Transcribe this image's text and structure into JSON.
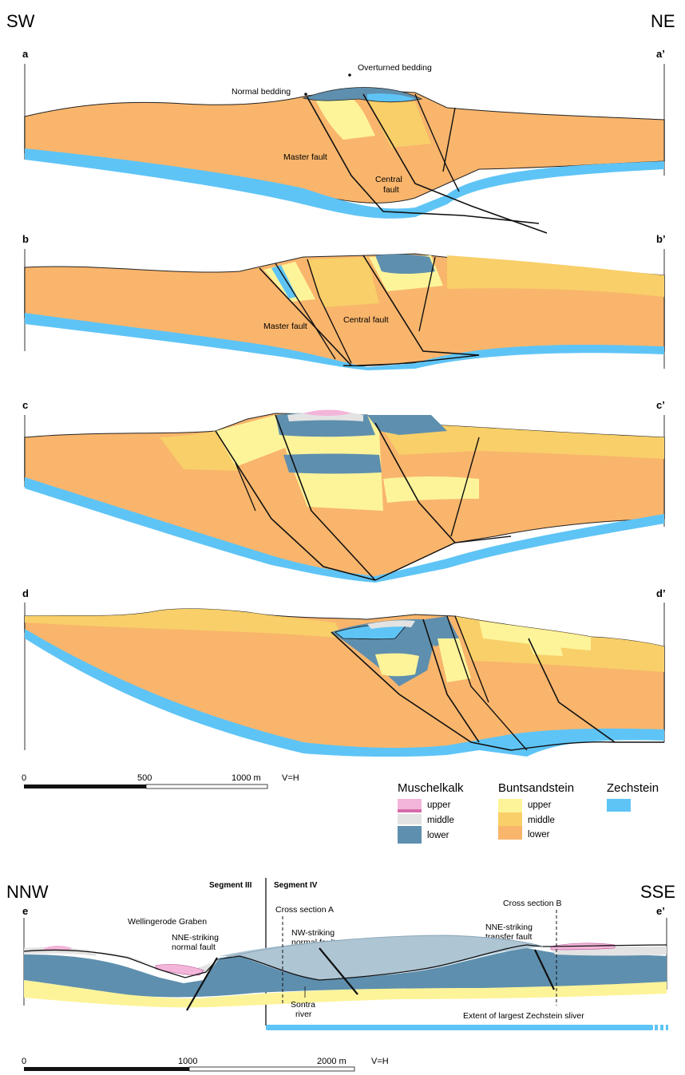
{
  "upper_diagram": {
    "corner_left": "SW",
    "corner_right": "NE",
    "sections": [
      {
        "id": "a",
        "left": "a",
        "right": "a’"
      },
      {
        "id": "b",
        "left": "b",
        "right": "b’"
      },
      {
        "id": "c",
        "left": "c",
        "right": "c’"
      },
      {
        "id": "d",
        "left": "d",
        "right": "d’"
      }
    ],
    "annotations": {
      "normal_bedding": "Normal bedding",
      "overturned_bedding": "Overturned bedding",
      "master_fault_a": "Master fault",
      "central_fault_a_line1": "Central",
      "central_fault_a_line2": "fault",
      "master_fault_b": "Master fault",
      "central_fault_b": "Central fault"
    },
    "scale": {
      "t0": "0",
      "t1": "500",
      "t2": "1000 m",
      "ratio": "V=H"
    }
  },
  "legend": {
    "groups": [
      {
        "title": "Muschelkalk",
        "items": [
          "upper",
          "middle",
          "lower"
        ],
        "colors": [
          "#f3b5d9",
          "#e3e3e3",
          "#5e8fae"
        ]
      },
      {
        "title": "Buntsandstein",
        "items": [
          "upper",
          "middle",
          "lower"
        ],
        "colors": [
          "#fdf49a",
          "#f8cf68",
          "#f9b56c"
        ]
      },
      {
        "title": "Zechstein",
        "items": [],
        "colors": [
          "#5ec4f6"
        ]
      }
    ]
  },
  "lower_diagram": {
    "corner_left": "NNW",
    "corner_right": "SSE",
    "section_left": "e",
    "section_right": "e’",
    "segment_iii": "Segment III",
    "segment_iv": "Segment IV",
    "cross_section_a": "Cross section A",
    "cross_section_b": "Cross section B",
    "wellingerode": "Wellingerode Graben",
    "nne_fault_l1": "NNE-striking",
    "nne_fault_l2": "normal fault",
    "nw_fault_l1": "NW-striking",
    "nw_fault_l2": "normal fault",
    "transfer_l1": "NNE-striking",
    "transfer_l2": "transfer fault",
    "river_l1": "Sontra",
    "river_l2": "river",
    "zechstein_extent": "Extent of largest Zechstein sliver",
    "scale": {
      "t0": "0",
      "t1": "1000",
      "t2": "2000 m",
      "ratio": "V=H"
    }
  },
  "colors": {
    "zechstein": "#5ec4f6",
    "bunt_lower": "#f9b56c",
    "bunt_middle": "#f8cf68",
    "bunt_upper": "#fdf49a",
    "muschel_lower": "#5e8fae",
    "muschel_middle": "#e3e3e3",
    "muschel_upper": "#f3b5d9"
  }
}
